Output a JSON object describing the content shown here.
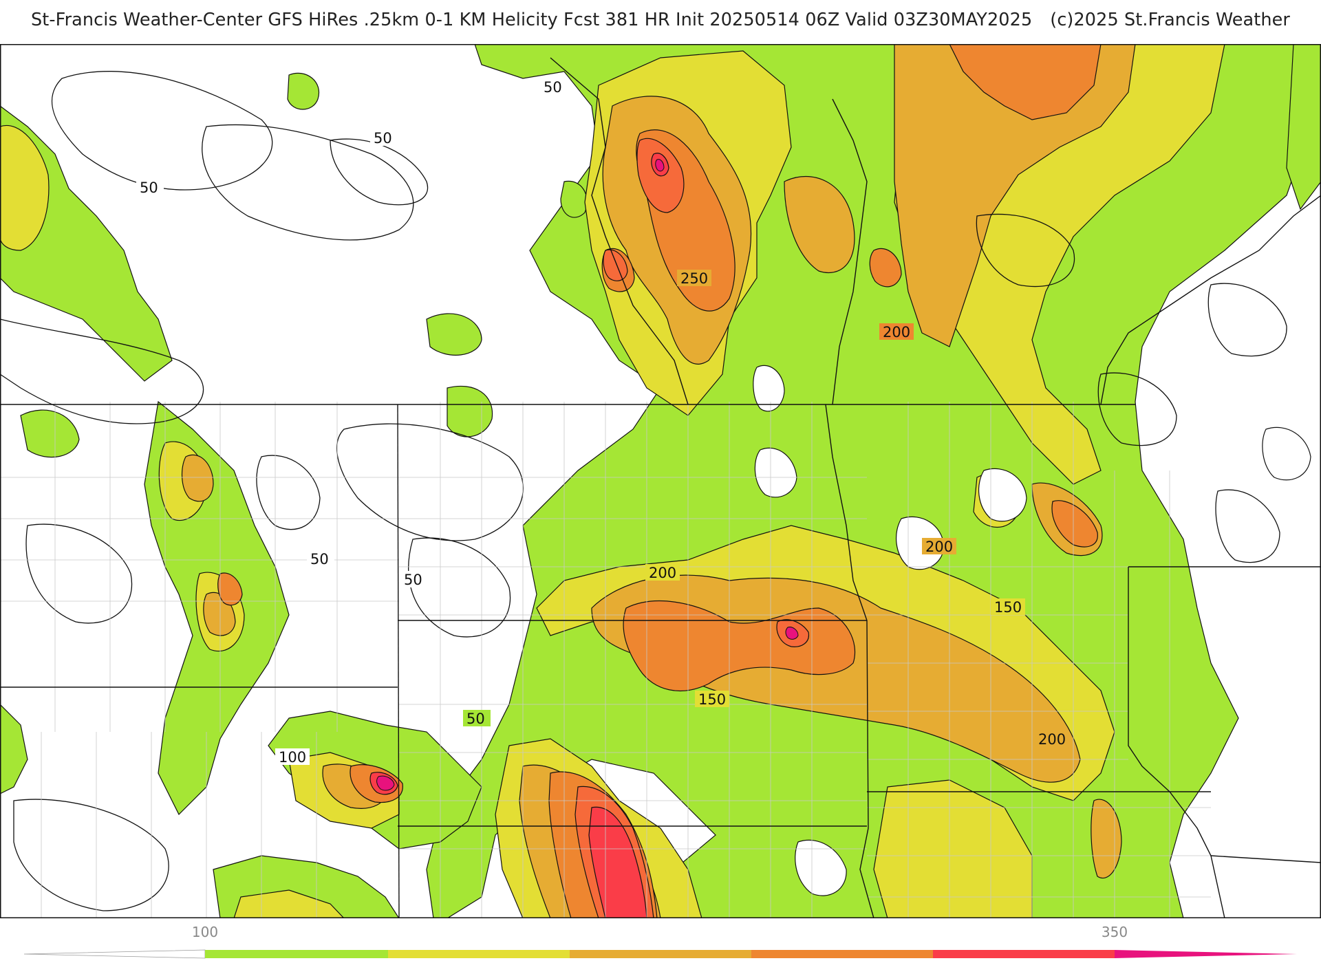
{
  "title": {
    "main": "St-Francis Weather-Center GFS HiRes .25km 0-1 KM Helicity Fcst 381 HR Init 20250514 06Z  Valid 03Z30MAY2025",
    "copyright": "(c)2025 St.Francis Weather"
  },
  "colors": {
    "c50": "#a5e635",
    "c100": "#e3de34",
    "c150": "#e6ac33",
    "c200": "#ee8630",
    "c250": "#f66a3a",
    "c300": "#fa3d48",
    "c350": "#e8127d",
    "state_line": "#111111",
    "county_line": "#c8c8c8",
    "contour": "#111111"
  },
  "contour_labels": [
    "50",
    "50",
    "50",
    "250",
    "200",
    "50",
    "50",
    "200",
    "150",
    "150",
    "200",
    "50",
    "100",
    "200"
  ],
  "colorbar": {
    "tick_labels": [
      "100",
      "350"
    ],
    "levels": [
      50,
      100,
      150,
      200,
      250,
      300,
      350
    ]
  }
}
